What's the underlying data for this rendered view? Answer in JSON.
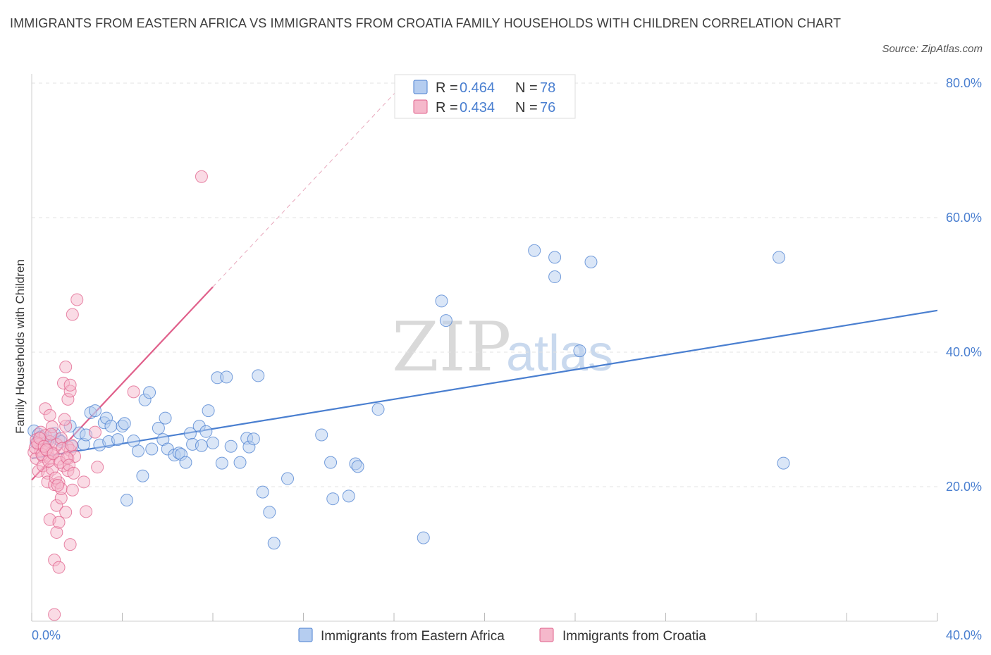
{
  "title": "IMMIGRANTS FROM EASTERN AFRICA VS IMMIGRANTS FROM CROATIA FAMILY HOUSEHOLDS WITH CHILDREN CORRELATION CHART",
  "source": "Source: ZipAtlas.com",
  "watermark": {
    "zip": "ZIP",
    "atlas": "atlas"
  },
  "chart_data": {
    "type": "scatter",
    "title": "IMMIGRANTS FROM EASTERN AFRICA VS IMMIGRANTS FROM CROATIA FAMILY HOUSEHOLDS WITH CHILDREN CORRELATION CHART",
    "xlabel": "",
    "ylabel": "Family Households with Children",
    "xlim": [
      0,
      40
    ],
    "ylim": [
      0,
      80
    ],
    "x_tick_labels": [
      "0.0%",
      "40.0%"
    ],
    "y_tick_labels": [
      "20.0%",
      "40.0%",
      "60.0%",
      "80.0%"
    ],
    "y_tick_values": [
      20,
      40,
      60,
      80
    ],
    "grid": true,
    "legend_position": "bottom",
    "colors": {
      "blue": "#4a7fd0",
      "blue_fill": "#b5cdf0",
      "pink": "#e0608b",
      "pink_fill": "#f5b8cb"
    },
    "series": [
      {
        "name": "Immigrants from Eastern Africa",
        "color": "#4a7fd0",
        "stats": {
          "r_label": "R =",
          "r": "0.464",
          "n_label": "N =",
          "n": "78"
        },
        "trend": {
          "x": [
            0,
            40
          ],
          "y": [
            24.2,
            46.2
          ]
        },
        "points": [
          [
            0.1,
            28.3
          ],
          [
            0.3,
            27.8
          ],
          [
            0.5,
            27.2
          ],
          [
            0.7,
            26.8
          ],
          [
            0.9,
            27.5
          ],
          [
            1.2,
            27.0
          ],
          [
            1.7,
            29.0
          ],
          [
            2.1,
            28.0
          ],
          [
            2.3,
            26.3
          ],
          [
            2.4,
            27.7
          ],
          [
            2.6,
            31.0
          ],
          [
            2.8,
            31.3
          ],
          [
            3.0,
            26.2
          ],
          [
            3.2,
            29.5
          ],
          [
            3.3,
            30.2
          ],
          [
            3.4,
            26.7
          ],
          [
            3.5,
            29.0
          ],
          [
            3.8,
            27.0
          ],
          [
            4.0,
            29.0
          ],
          [
            4.1,
            29.4
          ],
          [
            4.2,
            18.0
          ],
          [
            4.5,
            26.8
          ],
          [
            4.7,
            25.3
          ],
          [
            4.9,
            21.6
          ],
          [
            5.0,
            32.9
          ],
          [
            5.2,
            34.0
          ],
          [
            5.3,
            25.6
          ],
          [
            5.6,
            28.7
          ],
          [
            5.8,
            27.0
          ],
          [
            5.9,
            30.2
          ],
          [
            6.0,
            25.6
          ],
          [
            6.3,
            24.7
          ],
          [
            6.5,
            25.0
          ],
          [
            6.6,
            24.8
          ],
          [
            6.8,
            23.6
          ],
          [
            7.0,
            27.9
          ],
          [
            7.1,
            26.3
          ],
          [
            7.4,
            29.0
          ],
          [
            7.5,
            26.1
          ],
          [
            7.7,
            28.2
          ],
          [
            7.8,
            31.3
          ],
          [
            8.0,
            26.5
          ],
          [
            8.2,
            36.2
          ],
          [
            8.4,
            23.5
          ],
          [
            8.6,
            36.3
          ],
          [
            8.8,
            26.0
          ],
          [
            9.2,
            23.6
          ],
          [
            9.5,
            27.2
          ],
          [
            9.6,
            25.9
          ],
          [
            9.8,
            27.1
          ],
          [
            10.0,
            36.5
          ],
          [
            10.2,
            19.2
          ],
          [
            10.5,
            16.2
          ],
          [
            10.7,
            11.6
          ],
          [
            11.3,
            21.2
          ],
          [
            12.8,
            27.7
          ],
          [
            13.2,
            23.6
          ],
          [
            13.3,
            18.2
          ],
          [
            14.0,
            18.6
          ],
          [
            14.3,
            23.4
          ],
          [
            14.4,
            23.0
          ],
          [
            15.3,
            31.5
          ],
          [
            17.3,
            12.4
          ],
          [
            18.1,
            47.6
          ],
          [
            18.3,
            44.7
          ],
          [
            22.2,
            55.1
          ],
          [
            23.1,
            54.1
          ],
          [
            23.1,
            51.2
          ],
          [
            24.2,
            40.2
          ],
          [
            24.7,
            53.4
          ],
          [
            33.0,
            54.1
          ],
          [
            33.2,
            23.5
          ],
          [
            0.2,
            26.5
          ],
          [
            0.6,
            25.7
          ],
          [
            1.0,
            27.9
          ],
          [
            1.3,
            26.7
          ],
          [
            1.8,
            26.0
          ],
          [
            0.4,
            27.4
          ]
        ]
      },
      {
        "name": "Immigrants from Croatia",
        "color": "#e0608b",
        "stats": {
          "r_label": "R =",
          "r": "0.434",
          "n_label": "N =",
          "n": "76"
        },
        "trend": {
          "x": [
            0,
            8.0
          ],
          "y": [
            21.0,
            49.7
          ]
        },
        "points": [
          [
            0.1,
            25.1
          ],
          [
            0.2,
            27.0
          ],
          [
            0.2,
            24.2
          ],
          [
            0.3,
            26.3
          ],
          [
            0.3,
            22.3
          ],
          [
            0.4,
            25.4
          ],
          [
            0.4,
            28.1
          ],
          [
            0.5,
            26.0
          ],
          [
            0.5,
            24.5
          ],
          [
            0.5,
            23.1
          ],
          [
            0.6,
            31.6
          ],
          [
            0.6,
            27.6
          ],
          [
            0.7,
            25.3
          ],
          [
            0.7,
            22.0
          ],
          [
            0.7,
            20.7
          ],
          [
            0.8,
            26.7
          ],
          [
            0.8,
            30.6
          ],
          [
            0.8,
            24.2
          ],
          [
            0.8,
            15.1
          ],
          [
            0.9,
            28.9
          ],
          [
            0.9,
            25.1
          ],
          [
            0.9,
            22.6
          ],
          [
            1.0,
            20.3
          ],
          [
            1.0,
            1.0
          ],
          [
            1.0,
            9.1
          ],
          [
            1.1,
            26.3
          ],
          [
            1.1,
            17.2
          ],
          [
            1.1,
            13.2
          ],
          [
            1.2,
            24.1
          ],
          [
            1.2,
            20.6
          ],
          [
            1.2,
            8.0
          ],
          [
            1.2,
            14.7
          ],
          [
            1.3,
            18.3
          ],
          [
            1.3,
            19.7
          ],
          [
            1.3,
            27.2
          ],
          [
            1.4,
            23.1
          ],
          [
            1.4,
            35.4
          ],
          [
            1.5,
            37.8
          ],
          [
            1.5,
            29.0
          ],
          [
            1.5,
            16.2
          ],
          [
            1.6,
            33.0
          ],
          [
            1.6,
            25.9
          ],
          [
            1.6,
            24.2
          ],
          [
            1.6,
            22.4
          ],
          [
            1.7,
            34.2
          ],
          [
            1.7,
            35.1
          ],
          [
            1.7,
            25.4
          ],
          [
            1.7,
            11.4
          ],
          [
            1.8,
            45.6
          ],
          [
            1.8,
            19.5
          ],
          [
            1.9,
            24.5
          ],
          [
            2.0,
            47.8
          ],
          [
            2.3,
            20.7
          ],
          [
            2.4,
            16.3
          ],
          [
            2.8,
            28.1
          ],
          [
            2.9,
            22.9
          ],
          [
            4.5,
            34.1
          ],
          [
            7.5,
            66.1
          ],
          [
            0.15,
            25.8
          ],
          [
            0.25,
            26.5
          ],
          [
            0.35,
            27.2
          ],
          [
            0.45,
            24.8
          ],
          [
            0.55,
            26.0
          ],
          [
            0.65,
            25.5
          ],
          [
            0.75,
            23.8
          ],
          [
            0.85,
            27.8
          ],
          [
            0.95,
            24.9
          ],
          [
            1.05,
            21.3
          ],
          [
            1.15,
            20.2
          ],
          [
            1.25,
            23.6
          ],
          [
            1.35,
            25.7
          ],
          [
            1.45,
            30.0
          ],
          [
            1.55,
            24.3
          ],
          [
            1.65,
            23.2
          ],
          [
            1.75,
            26.2
          ],
          [
            1.85,
            22.0
          ]
        ]
      }
    ]
  }
}
